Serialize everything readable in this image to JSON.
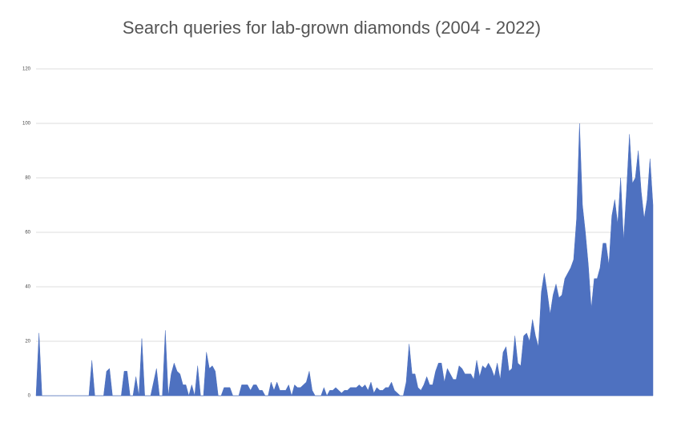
{
  "chart_data": {
    "type": "area",
    "title": "Search queries for lab-grown diamonds (2004 - 2022)",
    "color": "#4e71c0",
    "grid": true,
    "ylim": [
      0,
      120
    ],
    "yticks": [
      0,
      20,
      40,
      60,
      80,
      100,
      120
    ],
    "values": [
      0,
      23,
      0,
      0,
      0,
      0,
      0,
      0,
      0,
      0,
      0,
      0,
      0,
      0,
      0,
      0,
      0,
      0,
      0,
      13,
      0,
      0,
      0,
      0,
      9,
      10,
      0,
      0,
      0,
      0,
      9,
      9,
      0,
      0,
      7,
      0,
      21,
      0,
      0,
      0,
      5,
      10,
      0,
      0,
      24,
      0,
      8,
      12,
      9,
      8,
      4,
      4,
      0,
      4,
      0,
      11,
      0,
      0,
      16,
      10,
      11,
      9,
      0,
      0,
      3,
      3,
      3,
      0,
      0,
      0,
      4,
      4,
      4,
      2,
      4,
      4,
      2,
      2,
      0,
      0,
      5,
      2,
      5,
      2,
      2,
      2,
      4,
      0,
      4,
      3,
      3,
      4,
      5,
      9,
      2,
      0,
      0,
      0,
      3,
      0,
      2,
      2,
      3,
      2,
      1,
      2,
      2,
      3,
      3,
      3,
      4,
      3,
      4,
      2,
      5,
      1,
      3,
      2,
      2,
      3,
      3,
      5,
      2,
      1,
      0,
      0,
      5,
      19,
      8,
      8,
      3,
      2,
      4,
      7,
      4,
      4,
      9,
      12,
      12,
      5,
      10,
      8,
      6,
      6,
      11,
      10,
      8,
      8,
      8,
      6,
      13,
      7,
      11,
      10,
      12,
      10,
      7,
      12,
      6,
      16,
      18,
      9,
      10,
      22,
      12,
      11,
      22,
      23,
      20,
      28,
      22,
      18,
      38,
      45,
      38,
      30,
      37,
      41,
      36,
      37,
      43,
      45,
      47,
      50,
      65,
      100,
      70,
      60,
      48,
      32,
      43,
      43,
      47,
      56,
      56,
      48,
      66,
      72,
      63,
      80,
      57,
      75,
      96,
      78,
      80,
      90,
      75,
      65,
      72,
      87,
      70
    ]
  }
}
